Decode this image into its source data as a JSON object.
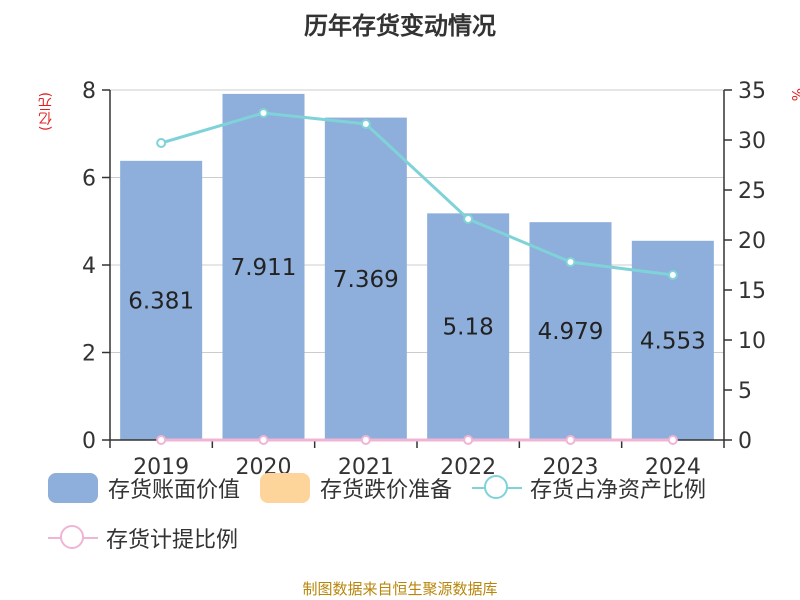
{
  "title": "历年存货变动情况",
  "source": "制图数据来自恒生聚源数据库",
  "axes": {
    "left_unit": "(亿元)",
    "right_unit": "%"
  },
  "legend": [
    {
      "label": "存货账面价值",
      "kind": "bar",
      "color": "#8eaedb"
    },
    {
      "label": "存货跌价准备",
      "kind": "bar",
      "color": "#fdd59a"
    },
    {
      "label": "存货占净资产比例",
      "kind": "line",
      "color": "#7fd3d8"
    },
    {
      "label": "存货计提比例",
      "kind": "line",
      "color": "#f0b5d5"
    }
  ],
  "chart_data": {
    "type": "bar",
    "categories": [
      "2019",
      "2020",
      "2021",
      "2022",
      "2023",
      "2024"
    ],
    "series": [
      {
        "name": "存货账面价值",
        "type": "bar",
        "axis": "left",
        "color": "#8eaedb",
        "values": [
          6.381,
          7.911,
          7.369,
          5.18,
          4.979,
          4.553
        ],
        "labels": [
          "6.381",
          "7.911",
          "7.369",
          "5.18",
          "4.979",
          "4.553"
        ]
      },
      {
        "name": "存货跌价准备",
        "type": "bar",
        "axis": "left",
        "color": "#fdd59a",
        "values": [
          0,
          0,
          0,
          0,
          0,
          0
        ]
      },
      {
        "name": "存货占净资产比例",
        "type": "line",
        "axis": "right",
        "color": "#7fd3d8",
        "values": [
          29.7,
          32.7,
          31.6,
          22.1,
          17.8,
          16.5
        ]
      },
      {
        "name": "存货计提比例",
        "type": "line",
        "axis": "right",
        "color": "#f0b5d5",
        "values": [
          0,
          0,
          0,
          0,
          0,
          0
        ]
      }
    ],
    "left_axis": {
      "min": 0,
      "max": 8,
      "ticks": [
        0,
        2,
        4,
        6,
        8
      ]
    },
    "right_axis": {
      "min": 0,
      "max": 35,
      "ticks": [
        0,
        5,
        10,
        15,
        20,
        25,
        30,
        35
      ]
    },
    "grid": true,
    "legend_position": "bottom"
  }
}
